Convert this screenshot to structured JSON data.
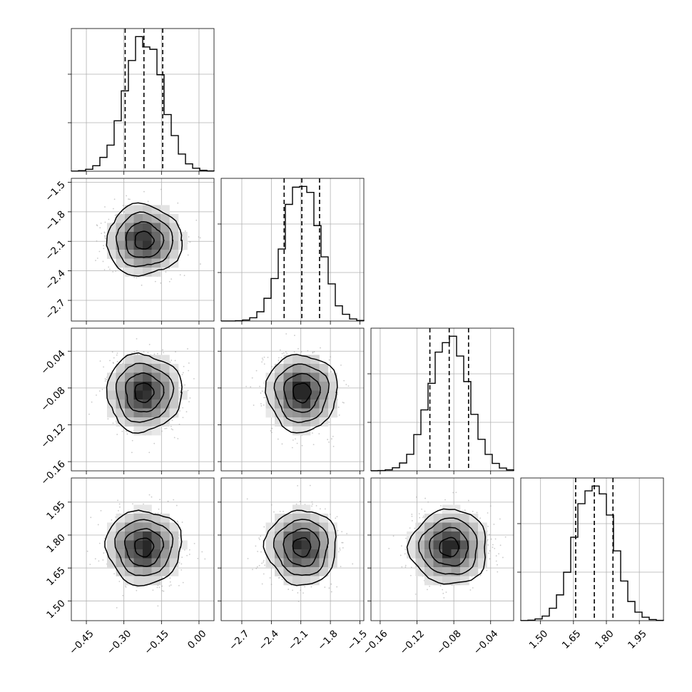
{
  "chart_data": {
    "type": "corner",
    "title": "",
    "parameters": [
      {
        "index": 0,
        "mean": -0.22,
        "sd": 0.075,
        "quantiles": [
          -0.295,
          -0.22,
          -0.145
        ],
        "range": [
          -0.51,
          0.06
        ],
        "ticks": [
          -0.45,
          -0.3,
          -0.15,
          0.0
        ],
        "tick_labels": [
          "−0.45",
          "−0.30",
          "−0.15",
          "0.00"
        ]
      },
      {
        "index": 1,
        "mean": -2.09,
        "sd": 0.18,
        "quantiles": [
          -2.27,
          -2.09,
          -1.91
        ],
        "range": [
          -2.91,
          -1.46
        ],
        "ticks": [
          -2.7,
          -2.4,
          -2.1,
          -1.8,
          -1.5
        ],
        "tick_labels": [
          "−2.7",
          "−2.4",
          "−2.1",
          "−1.8",
          "−1.5"
        ]
      },
      {
        "index": 2,
        "mean": -0.085,
        "sd": 0.021,
        "quantiles": [
          -0.106,
          -0.085,
          -0.064
        ],
        "range": [
          -0.17,
          -0.015
        ],
        "ticks": [
          -0.16,
          -0.12,
          -0.08,
          -0.04
        ],
        "tick_labels": [
          "−0.16",
          "−0.12",
          "−0.08",
          "−0.04"
        ]
      },
      {
        "index": 3,
        "mean": 1.745,
        "sd": 0.085,
        "quantiles": [
          1.66,
          1.745,
          1.83
        ],
        "range": [
          1.41,
          2.06
        ],
        "ticks": [
          1.5,
          1.65,
          1.8,
          1.95
        ],
        "tick_labels": [
          "1.50",
          "1.65",
          "1.80",
          "1.95"
        ]
      }
    ],
    "histogram_bins": 20,
    "contour_levels": [
      "0.5σ",
      "1σ",
      "1.5σ",
      "2σ"
    ],
    "grid": true,
    "colors": {
      "line": "#000000",
      "points": "#9e9e9e",
      "grid": "#b0b0b0"
    }
  }
}
